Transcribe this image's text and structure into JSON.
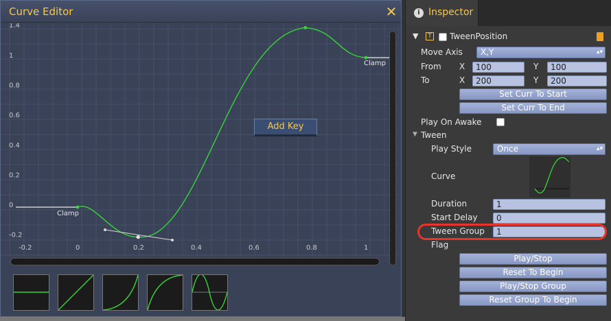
{
  "editor": {
    "title": "Curve Editor",
    "close_glyph": "✕",
    "add_key_label": "Add Key",
    "x_ticks": [
      "-0.2",
      "0",
      "0.2",
      "0.4",
      "0.6",
      "0.8",
      "1"
    ],
    "y_ticks": [
      "1.4",
      "1",
      "0.8",
      "0.6",
      "0.4",
      "0.2",
      "0",
      "-0.2"
    ],
    "clamp_left_label": "Clamp",
    "clamp_right_label": "Clamp",
    "curve_keys": [
      {
        "t": 0.0,
        "v": 0.0
      },
      {
        "t": 0.21,
        "v": -0.2
      },
      {
        "t": 0.79,
        "v": 1.2
      },
      {
        "t": 1.0,
        "v": 1.0
      }
    ],
    "curve_color": "#37d43a",
    "presets": [
      "constant",
      "linear",
      "ease-in",
      "ease-out",
      "sine"
    ]
  },
  "inspector": {
    "tab_label": "Inspector",
    "tab_icon": "info-icon",
    "component": {
      "name": "TweenPosition",
      "icon_letter": "T",
      "enabled": false
    },
    "move_axis": {
      "label": "Move Axis",
      "value": "X,Y"
    },
    "from": {
      "label": "From",
      "x_label": "X",
      "x": "100",
      "y_label": "Y",
      "y": "100"
    },
    "to": {
      "label": "To",
      "x_label": "X",
      "x": "200",
      "y_label": "Y",
      "y": "200"
    },
    "set_curr_to_start": "Set Curr To Start",
    "set_curr_to_end": "Set Curr To End",
    "play_on_awake": {
      "label": "Play On Awake",
      "checked": false
    },
    "tween_section": "Tween",
    "play_style": {
      "label": "Play Style",
      "value": "Once"
    },
    "curve_label": "Curve",
    "duration": {
      "label": "Duration",
      "value": "1"
    },
    "start_delay": {
      "label": "Start Delay",
      "value": "0"
    },
    "tween_group": {
      "label": "Tween Group",
      "value": "1"
    },
    "flag": {
      "label": "Flag",
      "value": ""
    },
    "buttons": [
      "Play/Stop",
      "Reset To Begin",
      "Play/Stop Group",
      "Reset Group To Begin"
    ]
  },
  "colors": {
    "accent": "#f5c84a",
    "highlight": "#e8342a",
    "curve": "#37d43a"
  }
}
